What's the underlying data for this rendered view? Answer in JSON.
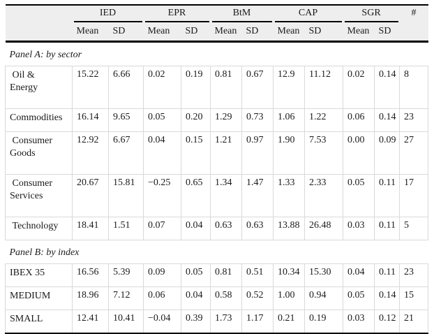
{
  "table": {
    "count_header": "#",
    "groups": [
      {
        "label": "IED",
        "sub": [
          "Mean",
          "SD"
        ]
      },
      {
        "label": "EPR",
        "sub": [
          "Mean",
          "SD"
        ]
      },
      {
        "label": "BtM",
        "sub": [
          "Mean",
          "SD"
        ]
      },
      {
        "label": "CAP",
        "sub": [
          "Mean",
          "SD"
        ]
      },
      {
        "label": "SGR",
        "sub": [
          "Mean",
          "SD"
        ]
      }
    ],
    "panels": [
      {
        "title": "Panel A: by sector",
        "rows": [
          {
            "label": " Oil &\nEnergy",
            "values": [
              "15.22",
              "6.66",
              "0.02",
              "0.19",
              "0.81",
              "0.67",
              "12.9",
              "11.12",
              "0.02",
              "0.14",
              "8"
            ]
          },
          {
            "label": "Commodities",
            "values": [
              "16.14",
              "9.65",
              "0.05",
              "0.20",
              "1.29",
              "0.73",
              "1.06",
              "1.22",
              "0.06",
              "0.14",
              "23"
            ]
          },
          {
            "label": " Consumer\nGoods",
            "values": [
              "12.92",
              "6.67",
              "0.04",
              "0.15",
              "1.21",
              "0.97",
              "1.90",
              "7.53",
              "0.00",
              "0.09",
              "27"
            ]
          },
          {
            "label": " Consumer\nServices",
            "values": [
              "20.67",
              "15.81",
              "−0.25",
              "0.65",
              "1.34",
              "1.47",
              "1.33",
              "2.33",
              "0.05",
              "0.11",
              "17"
            ]
          },
          {
            "label": " Technology",
            "values": [
              "18.41",
              "1.51",
              "0.07",
              "0.04",
              "0.63",
              "0.63",
              "13.88",
              "26.48",
              "0.03",
              "0.11",
              "5"
            ]
          }
        ]
      },
      {
        "title": "Panel B: by index",
        "rows": [
          {
            "label": "IBEX 35",
            "values": [
              "16.56",
              "5.39",
              "0.09",
              "0.05",
              "0.81",
              "0.51",
              "10.34",
              "15.30",
              "0.04",
              "0.11",
              "23"
            ]
          },
          {
            "label": "MEDIUM",
            "values": [
              "18.96",
              "7.12",
              "0.06",
              "0.04",
              "0.58",
              "0.52",
              "1.00",
              "0.94",
              "0.05",
              "0.14",
              "15"
            ]
          },
          {
            "label": "SMALL",
            "values": [
              "12.41",
              "10.41",
              "−0.04",
              "0.39",
              "1.73",
              "1.17",
              "0.21",
              "0.19",
              "0.03",
              "0.12",
              "21"
            ]
          }
        ]
      }
    ],
    "colors": {
      "header_background": "#eeeeee",
      "rule_black": "#000000",
      "grid_gray": "#d9d9d9",
      "text": "#1a1a1a"
    }
  }
}
